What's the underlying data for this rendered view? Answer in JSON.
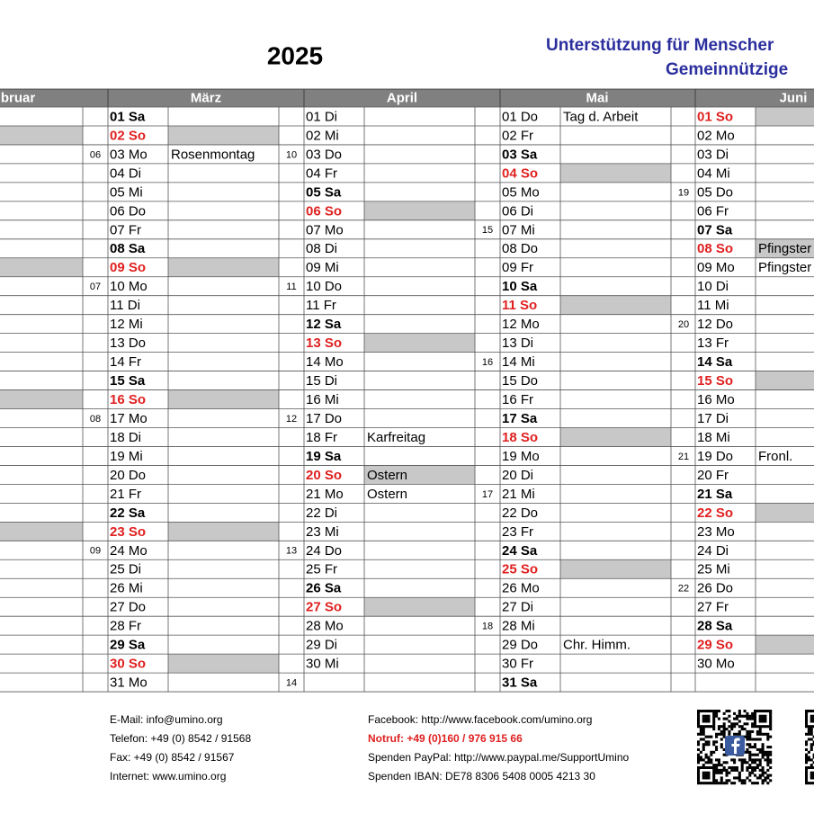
{
  "header": {
    "year": "2025",
    "title_line1": "Unterstützung für Menscher",
    "title_line2": "Gemeinnützige"
  },
  "months": [
    {
      "name": "bruar",
      "rows": [
        null,
        {
          "shaded": true
        },
        {
          "week": "06"
        },
        null,
        null,
        null,
        null,
        null,
        {
          "shaded": true
        },
        {
          "week": "07"
        },
        null,
        null,
        null,
        null,
        null,
        {
          "shaded": true
        },
        {
          "week": "08"
        },
        null,
        null,
        null,
        null,
        null,
        {
          "shaded": true
        },
        {
          "week": "09"
        },
        null,
        null,
        null,
        null,
        null,
        null,
        null
      ]
    },
    {
      "name": "März",
      "rows": [
        {
          "label": "01 Sa"
        },
        {
          "label": "02 So"
        },
        {
          "label": "03 Mo",
          "event": "Rosenmontag",
          "week": "10"
        },
        {
          "label": "04 Di"
        },
        {
          "label": "05 Mi"
        },
        {
          "label": "06 Do"
        },
        {
          "label": "07 Fr"
        },
        {
          "label": "08 Sa"
        },
        {
          "label": "09 So"
        },
        {
          "label": "10 Mo",
          "week": "11"
        },
        {
          "label": "11 Di"
        },
        {
          "label": "12 Mi"
        },
        {
          "label": "13 Do"
        },
        {
          "label": "14 Fr"
        },
        {
          "label": "15 Sa"
        },
        {
          "label": "16 So"
        },
        {
          "label": "17 Mo",
          "week": "12"
        },
        {
          "label": "18 Di"
        },
        {
          "label": "19 Mi"
        },
        {
          "label": "20 Do"
        },
        {
          "label": "21 Fr"
        },
        {
          "label": "22 Sa"
        },
        {
          "label": "23 So"
        },
        {
          "label": "24 Mo",
          "week": "13"
        },
        {
          "label": "25 Di"
        },
        {
          "label": "26 Mi"
        },
        {
          "label": "27 Do"
        },
        {
          "label": "28 Fr"
        },
        {
          "label": "29 Sa"
        },
        {
          "label": "30 So"
        },
        {
          "label": "31 Mo",
          "week": "14"
        }
      ]
    },
    {
      "name": "April",
      "rows": [
        {
          "label": "01 Di"
        },
        {
          "label": "02 Mi"
        },
        {
          "label": "03 Do"
        },
        {
          "label": "04 Fr"
        },
        {
          "label": "05 Sa"
        },
        {
          "label": "06 So"
        },
        {
          "label": "07 Mo",
          "week": "15"
        },
        {
          "label": "08 Di"
        },
        {
          "label": "09 Mi"
        },
        {
          "label": "10 Do"
        },
        {
          "label": "11 Fr"
        },
        {
          "label": "12 Sa"
        },
        {
          "label": "13 So"
        },
        {
          "label": "14 Mo",
          "week": "16"
        },
        {
          "label": "15 Di"
        },
        {
          "label": "16 Mi"
        },
        {
          "label": "17 Do"
        },
        {
          "label": "18 Fr",
          "event": "Karfreitag"
        },
        {
          "label": "19 Sa"
        },
        {
          "label": "20 So",
          "event": "Ostern"
        },
        {
          "label": "21 Mo",
          "event": "Ostern",
          "week": "17"
        },
        {
          "label": "22 Di"
        },
        {
          "label": "23 Mi"
        },
        {
          "label": "24 Do"
        },
        {
          "label": "25 Fr"
        },
        {
          "label": "26 Sa"
        },
        {
          "label": "27 So"
        },
        {
          "label": "28 Mo",
          "week": "18"
        },
        {
          "label": "29 Di"
        },
        {
          "label": "30 Mi"
        },
        null
      ]
    },
    {
      "name": "Mai",
      "rows": [
        {
          "label": "01 Do",
          "event": "Tag d. Arbeit"
        },
        {
          "label": "02 Fr"
        },
        {
          "label": "03 Sa"
        },
        {
          "label": "04 So"
        },
        {
          "label": "05 Mo",
          "week": "19"
        },
        {
          "label": "06 Di"
        },
        {
          "label": "07 Mi"
        },
        {
          "label": "08 Do"
        },
        {
          "label": "09 Fr"
        },
        {
          "label": "10 Sa"
        },
        {
          "label": "11 So"
        },
        {
          "label": "12 Mo",
          "week": "20"
        },
        {
          "label": "13 Di"
        },
        {
          "label": "14 Mi"
        },
        {
          "label": "15 Do"
        },
        {
          "label": "16 Fr"
        },
        {
          "label": "17 Sa"
        },
        {
          "label": "18 So"
        },
        {
          "label": "19 Mo",
          "week": "21"
        },
        {
          "label": "20 Di"
        },
        {
          "label": "21 Mi"
        },
        {
          "label": "22 Do"
        },
        {
          "label": "23 Fr"
        },
        {
          "label": "24 Sa"
        },
        {
          "label": "25 So"
        },
        {
          "label": "26 Mo",
          "week": "22"
        },
        {
          "label": "27 Di"
        },
        {
          "label": "28 Mi"
        },
        {
          "label": "29 Do",
          "event": "Chr. Himm."
        },
        {
          "label": "30 Fr"
        },
        {
          "label": "31 Sa"
        }
      ]
    },
    {
      "name": "Juni",
      "rows": [
        {
          "label": "01 So"
        },
        {
          "label": "02 Mo"
        },
        {
          "label": "03 Di"
        },
        {
          "label": "04 Mi"
        },
        {
          "label": "05 Do"
        },
        {
          "label": "06 Fr"
        },
        {
          "label": "07 Sa"
        },
        {
          "label": "08 So",
          "event": "Pfingster"
        },
        {
          "label": "09 Mo",
          "event": "Pfingster"
        },
        {
          "label": "10 Di"
        },
        {
          "label": "11 Mi"
        },
        {
          "label": "12 Do"
        },
        {
          "label": "13 Fr"
        },
        {
          "label": "14 Sa"
        },
        {
          "label": "15 So"
        },
        {
          "label": "16 Mo"
        },
        {
          "label": "17 Di"
        },
        {
          "label": "18 Mi"
        },
        {
          "label": "19 Do",
          "event": "Fronl."
        },
        {
          "label": "20 Fr"
        },
        {
          "label": "21 Sa"
        },
        {
          "label": "22 So"
        },
        {
          "label": "23 Mo"
        },
        {
          "label": "24 Di"
        },
        {
          "label": "25 Mi"
        },
        {
          "label": "26 Do"
        },
        {
          "label": "27 Fr"
        },
        {
          "label": "28 Sa"
        },
        {
          "label": "29 So"
        },
        {
          "label": "30 Mo"
        },
        null
      ]
    }
  ],
  "footer": {
    "left": [
      "E-Mail: info@umino.org",
      "Telefon: +49 (0) 8542 / 91568",
      "Fax: +49 (0) 8542 / 91567",
      "Internet: www.umino.org"
    ],
    "right": [
      "Facebook: http://www.facebook.com/umino.org",
      "Notruf: +49 (0)160 / 976 915 66",
      "Spenden PayPal: http://www.paypal.me/SupportUmino",
      "Spenden IBAN: DE78 8306 5408 0005 4213 30"
    ]
  }
}
